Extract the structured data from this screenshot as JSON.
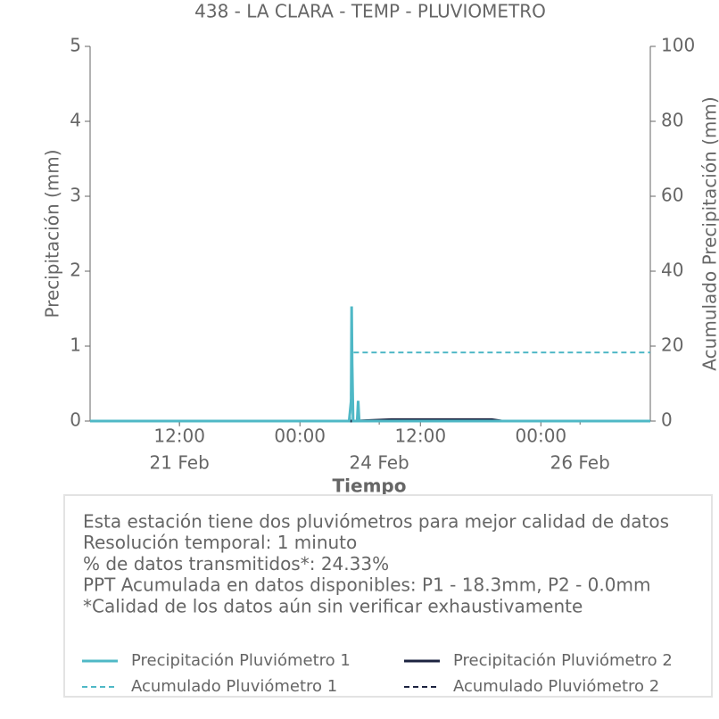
{
  "chart_data": {
    "type": "line",
    "title": "438 - LA CLARA - TEMP - PLUVIOMETRO",
    "x_label": "Tiempo",
    "y_label": "Precipitación (mm)",
    "y2_label": "Acumulado Precipitación (mm)",
    "xlim": [
      0,
      55.8
    ],
    "xticks": [
      {
        "value": 8.9,
        "label": "12:00"
      },
      {
        "value": 20.9,
        "label": "00:00"
      },
      {
        "value": 32.9,
        "label": "12:00"
      },
      {
        "value": 44.9,
        "label": "00:00"
      }
    ],
    "xticks_dates": [
      {
        "value": 8.9,
        "label": "21 Feb"
      },
      {
        "value": 28.8,
        "label": "24 Feb"
      },
      {
        "value": 48.8,
        "label": "26 Feb"
      }
    ],
    "ylim": [
      0,
      5
    ],
    "yticks": [
      0,
      1,
      2,
      3,
      4,
      5
    ],
    "y2lim": [
      0,
      100
    ],
    "y2ticks": [
      0,
      20,
      40,
      60,
      80,
      100
    ],
    "notes": [
      "Esta estación tiene dos pluviómetros para mejor calidad de datos",
      "Resolución temporal: 1 minuto",
      "% de datos transmitidos*: 24.33%",
      "PPT Acumulada en datos disponibles: P1 - 18.3mm, P2 - 0.0mm",
      "*Calidad de los datos aún sin verificar exhaustivamente"
    ],
    "series": [
      {
        "name": "Precipitación Pluviómetro 1",
        "color": "#4fb8c6",
        "dash": false,
        "x": [
          0,
          25.8,
          26.0,
          26.05,
          26.1,
          26.2,
          26.6,
          26.7,
          26.8,
          55.8
        ],
        "values": [
          0,
          0,
          0.27,
          1.53,
          0.78,
          0,
          0,
          0.27,
          0,
          0
        ]
      },
      {
        "name": "Precipitación Pluviómetro 2",
        "color": "#1c2340",
        "dash": false,
        "x": [
          0,
          26.5,
          30,
          35,
          38,
          40,
          41,
          55.8
        ],
        "values": [
          0,
          0,
          0.02,
          0.02,
          0.02,
          0.02,
          0,
          0
        ]
      },
      {
        "name": "Acumulado Pluviómetro 1",
        "color": "#4fb8c6",
        "dash": true,
        "axis": "y2",
        "x": [
          0,
          25.9,
          26.1,
          55.8
        ],
        "values": [
          0,
          0,
          18.3,
          18.3
        ]
      },
      {
        "name": "Acumulado Pluviómetro 2",
        "color": "#1c2340",
        "dash": true,
        "axis": "y2",
        "x": [
          0,
          55.8
        ],
        "values": [
          0,
          0
        ]
      }
    ]
  }
}
